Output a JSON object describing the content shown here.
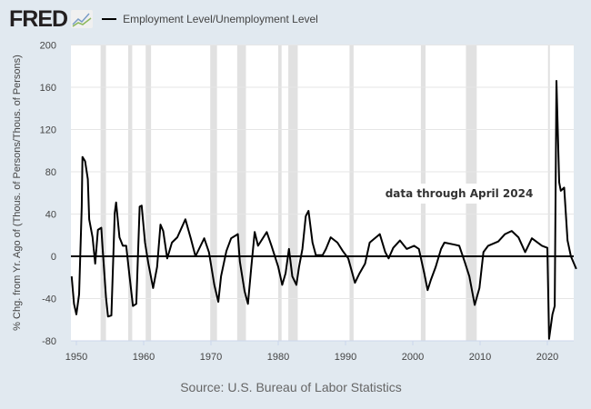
{
  "header": {
    "logo": "FRED",
    "series_label": "Employment Level/Unemployment Level"
  },
  "source": "Source: U.S. Bureau of Labor Statistics",
  "chart_data": {
    "type": "line",
    "title": "Employment Level/Unemployment Level",
    "ylabel": "% Chg. from Yr. Ago of (Thous. of Persons/Thous. of Persons)",
    "xlabel": "",
    "ylim": [
      -80,
      200
    ],
    "xlim": [
      1949.2,
      2024.3
    ],
    "yticks": [
      200,
      160,
      120,
      80,
      40,
      0,
      -40,
      -80
    ],
    "xticks": [
      1950,
      1960,
      1970,
      1980,
      1990,
      2000,
      2010,
      2020
    ],
    "grid": true,
    "annotation": "data through April 2024",
    "zero_line": true,
    "line_color": "#000000",
    "recessions": [
      [
        1953.6,
        1954.4
      ],
      [
        1957.7,
        1958.3
      ],
      [
        1960.3,
        1961.1
      ],
      [
        1969.9,
        1970.9
      ],
      [
        1973.9,
        1975.2
      ],
      [
        1980.0,
        1980.5
      ],
      [
        1981.5,
        1982.9
      ],
      [
        1990.6,
        1991.2
      ],
      [
        2001.2,
        2001.9
      ],
      [
        2007.9,
        2009.5
      ],
      [
        2020.1,
        2020.35
      ]
    ],
    "series": [
      {
        "name": "Employment Level/Unemployment Level",
        "points": [
          [
            1949.3,
            -19
          ],
          [
            1949.65,
            -45
          ],
          [
            1950.0,
            -55
          ],
          [
            1950.4,
            -36
          ],
          [
            1950.8,
            47
          ],
          [
            1950.9,
            94
          ],
          [
            1951.3,
            90
          ],
          [
            1951.7,
            73
          ],
          [
            1951.9,
            35
          ],
          [
            1952.4,
            18
          ],
          [
            1952.8,
            -7
          ],
          [
            1953.2,
            25
          ],
          [
            1953.7,
            27
          ],
          [
            1953.9,
            7
          ],
          [
            1954.4,
            -39
          ],
          [
            1954.7,
            -57
          ],
          [
            1955.2,
            -56
          ],
          [
            1955.7,
            41
          ],
          [
            1955.9,
            51
          ],
          [
            1956.4,
            18
          ],
          [
            1956.9,
            10
          ],
          [
            1957.4,
            10
          ],
          [
            1957.9,
            -19
          ],
          [
            1958.4,
            -47
          ],
          [
            1958.9,
            -45
          ],
          [
            1959.4,
            47
          ],
          [
            1959.7,
            48
          ],
          [
            1960.2,
            13
          ],
          [
            1960.7,
            -7
          ],
          [
            1961.4,
            -30
          ],
          [
            1962.0,
            -10
          ],
          [
            1962.5,
            30
          ],
          [
            1962.9,
            24
          ],
          [
            1963.5,
            -2
          ],
          [
            1964.2,
            13
          ],
          [
            1965.0,
            18
          ],
          [
            1966.2,
            35
          ],
          [
            1967.0,
            17
          ],
          [
            1967.7,
            0
          ],
          [
            1969.0,
            17
          ],
          [
            1969.7,
            4
          ],
          [
            1970.5,
            -27
          ],
          [
            1971.1,
            -43
          ],
          [
            1971.5,
            -19
          ],
          [
            1972.3,
            5
          ],
          [
            1973.0,
            17
          ],
          [
            1974.0,
            21
          ],
          [
            1974.3,
            -5
          ],
          [
            1975.0,
            -33
          ],
          [
            1975.5,
            -45
          ],
          [
            1976.0,
            -10
          ],
          [
            1976.5,
            23
          ],
          [
            1977.0,
            10
          ],
          [
            1978.3,
            23
          ],
          [
            1979.0,
            10
          ],
          [
            1980.0,
            -10
          ],
          [
            1980.6,
            -27
          ],
          [
            1981.1,
            -16
          ],
          [
            1981.6,
            7
          ],
          [
            1982.1,
            -19
          ],
          [
            1982.7,
            -27
          ],
          [
            1983.1,
            -10
          ],
          [
            1983.6,
            7
          ],
          [
            1984.1,
            38
          ],
          [
            1984.5,
            43
          ],
          [
            1985.1,
            13
          ],
          [
            1985.6,
            1
          ],
          [
            1986.6,
            1
          ],
          [
            1987.1,
            7
          ],
          [
            1987.8,
            18
          ],
          [
            1988.8,
            13
          ],
          [
            1989.6,
            5
          ],
          [
            1990.4,
            -2
          ],
          [
            1991.4,
            -25
          ],
          [
            1992.1,
            -16
          ],
          [
            1992.9,
            -7
          ],
          [
            1993.6,
            13
          ],
          [
            1995.1,
            21
          ],
          [
            1995.9,
            4
          ],
          [
            1996.4,
            -2
          ],
          [
            1997.1,
            8
          ],
          [
            1998.1,
            15
          ],
          [
            1999.1,
            7
          ],
          [
            2000.2,
            10
          ],
          [
            2000.9,
            7
          ],
          [
            2001.7,
            -16
          ],
          [
            2002.2,
            -32
          ],
          [
            2002.7,
            -22
          ],
          [
            2003.4,
            -10
          ],
          [
            2004.2,
            7
          ],
          [
            2004.7,
            13
          ],
          [
            2006.2,
            11
          ],
          [
            2006.9,
            10
          ],
          [
            2007.7,
            -5
          ],
          [
            2008.4,
            -19
          ],
          [
            2009.2,
            -46
          ],
          [
            2009.9,
            -30
          ],
          [
            2010.5,
            4
          ],
          [
            2011.2,
            10
          ],
          [
            2012.7,
            14
          ],
          [
            2013.7,
            21
          ],
          [
            2014.7,
            24
          ],
          [
            2015.7,
            18
          ],
          [
            2016.7,
            4
          ],
          [
            2017.7,
            17
          ],
          [
            2019.2,
            10
          ],
          [
            2020.0,
            8
          ],
          [
            2020.25,
            -78
          ],
          [
            2020.75,
            -55
          ],
          [
            2021.1,
            -47
          ],
          [
            2021.35,
            166
          ],
          [
            2021.75,
            70
          ],
          [
            2022.0,
            62
          ],
          [
            2022.5,
            65
          ],
          [
            2023.0,
            15
          ],
          [
            2023.5,
            0
          ],
          [
            2024.3,
            -12
          ]
        ]
      }
    ]
  }
}
